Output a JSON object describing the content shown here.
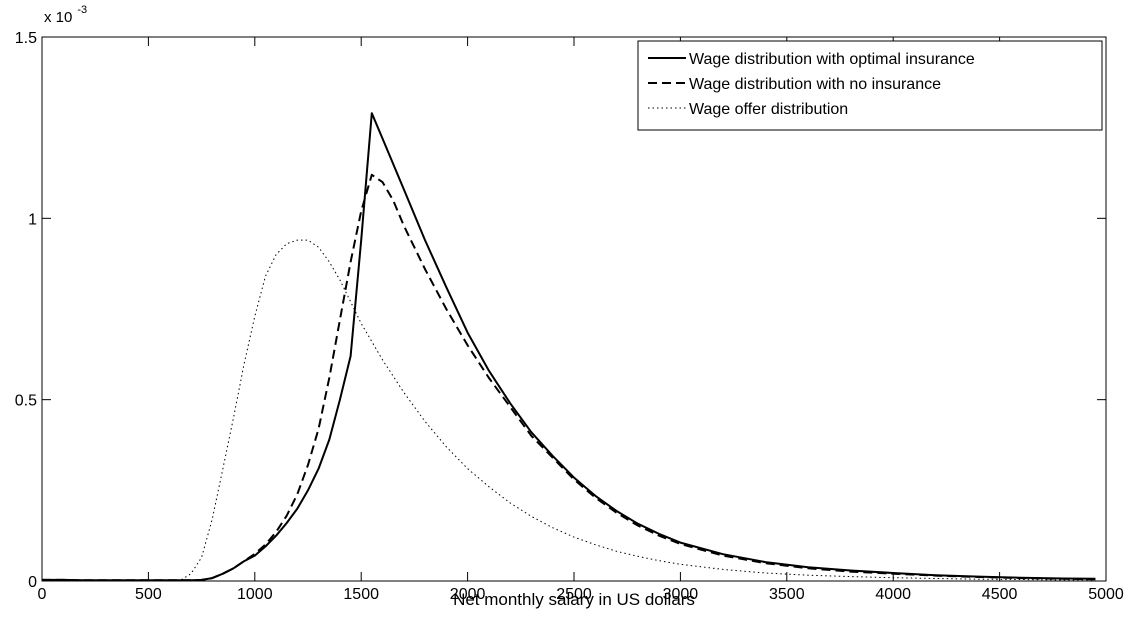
{
  "chart_data": {
    "type": "line",
    "title": "",
    "xlabel": "Net monthly salary in US dollars",
    "ylabel": "",
    "y_multiplier": {
      "base": "x 10",
      "exponent": "-3"
    },
    "xlim": [
      0,
      5000
    ],
    "ylim": [
      0,
      0.0015
    ],
    "x_ticks": [
      0,
      500,
      1000,
      1500,
      2000,
      2500,
      3000,
      3500,
      4000,
      4500,
      5000
    ],
    "x_tick_labels": [
      "0",
      "500",
      "1000",
      "1500",
      "2000",
      "2500",
      "3000",
      "3500",
      "4000",
      "4500",
      "5000"
    ],
    "y_ticks": [
      0,
      0.0005,
      0.001,
      0.0015
    ],
    "y_tick_labels": [
      "0",
      "0.5",
      "1",
      "1.5"
    ],
    "grid": false,
    "legend_position": "top-right",
    "series": [
      {
        "name": "Wage distribution with optimal insurance",
        "style": "solid",
        "color": "#000000",
        "x": [
          0,
          100,
          200,
          300,
          400,
          500,
          600,
          700,
          750,
          800,
          850,
          900,
          950,
          1000,
          1050,
          1100,
          1150,
          1200,
          1250,
          1300,
          1350,
          1400,
          1450,
          1500,
          1550,
          1600,
          1700,
          1800,
          1900,
          2000,
          2100,
          2200,
          2300,
          2400,
          2500,
          2600,
          2700,
          2800,
          2900,
          3000,
          3200,
          3400,
          3600,
          3800,
          4000,
          4200,
          4400,
          4600,
          4800,
          4950
        ],
        "y": [
          3e-06,
          3e-06,
          2e-06,
          2e-06,
          2e-06,
          2e-06,
          2e-06,
          2e-06,
          3e-06,
          8e-06,
          2e-05,
          3.5e-05,
          5.5e-05,
          7e-05,
          9.5e-05,
          0.000125,
          0.00016,
          0.0002,
          0.00025,
          0.00031,
          0.00039,
          0.0005,
          0.00062,
          0.00094,
          0.00129,
          0.00122,
          0.00108,
          0.00094,
          0.00081,
          0.000685,
          0.00058,
          0.00049,
          0.00041,
          0.000345,
          0.000285,
          0.000235,
          0.000193,
          0.000158,
          0.00013,
          0.000106,
          7.4e-05,
          5.2e-05,
          3.8e-05,
          2.9e-05,
          2.2e-05,
          1.6e-05,
          1.2e-05,
          9e-06,
          7e-06,
          6e-06
        ]
      },
      {
        "name": "Wage distribution with no insurance",
        "style": "dashed",
        "color": "#000000",
        "x": [
          0,
          100,
          200,
          300,
          400,
          500,
          600,
          700,
          750,
          800,
          850,
          900,
          950,
          1000,
          1050,
          1100,
          1150,
          1200,
          1250,
          1300,
          1350,
          1400,
          1450,
          1500,
          1550,
          1600,
          1650,
          1700,
          1800,
          1900,
          2000,
          2100,
          2200,
          2300,
          2400,
          2500,
          2600,
          2700,
          2800,
          2900,
          3000,
          3200,
          3400,
          3600,
          3800,
          4000,
          4200,
          4400,
          4600,
          4800,
          4950
        ],
        "y": [
          3e-06,
          3e-06,
          2e-06,
          2e-06,
          2e-06,
          2e-06,
          2e-06,
          2e-06,
          3e-06,
          8e-06,
          2e-05,
          3.5e-05,
          5.5e-05,
          7.5e-05,
          0.0001,
          0.000135,
          0.00018,
          0.00024,
          0.00032,
          0.00042,
          0.00056,
          0.00072,
          0.00088,
          0.00102,
          0.00112,
          0.0011,
          0.00105,
          0.00098,
          0.00086,
          0.00075,
          0.00065,
          0.00056,
          0.00048,
          0.0004,
          0.00034,
          0.00028,
          0.00023,
          0.000188,
          0.000153,
          0.000125,
          0.000102,
          7e-05,
          4.9e-05,
          3.5e-05,
          2.6e-05,
          2e-05,
          1.5e-05,
          1.1e-05,
          8e-06,
          6e-06,
          5e-06
        ]
      },
      {
        "name": "Wage offer distribution",
        "style": "dotted",
        "color": "#000000",
        "x": [
          0,
          100,
          200,
          300,
          400,
          500,
          600,
          650,
          700,
          750,
          800,
          850,
          900,
          950,
          1000,
          1050,
          1100,
          1150,
          1200,
          1250,
          1300,
          1350,
          1400,
          1450,
          1500,
          1600,
          1700,
          1800,
          1900,
          2000,
          2100,
          2200,
          2300,
          2400,
          2500,
          2600,
          2700,
          2800,
          2900,
          3000,
          3200,
          3400,
          3600,
          3800,
          4000,
          4200,
          4400,
          4600,
          4800,
          4950
        ],
        "y": [
          3e-06,
          3e-06,
          2e-06,
          2e-06,
          2e-06,
          2e-06,
          2e-06,
          2e-06,
          2e-05,
          6.5e-05,
          0.00017,
          0.00031,
          0.00045,
          0.0006,
          0.00073,
          0.00084,
          0.0009,
          0.00093,
          0.00094,
          0.00094,
          0.00092,
          0.00088,
          0.00083,
          0.00077,
          0.00071,
          0.00061,
          0.00052,
          0.00044,
          0.00037,
          0.00031,
          0.00026,
          0.000215,
          0.000178,
          0.000147,
          0.000121,
          0.0001,
          8.2e-05,
          6.8e-05,
          5.6e-05,
          4.6e-05,
          3.2e-05,
          2.2e-05,
          1.6e-05,
          1.2e-05,
          9e-06,
          7e-06,
          5e-06,
          4e-06,
          3e-06,
          3e-06
        ]
      }
    ]
  }
}
